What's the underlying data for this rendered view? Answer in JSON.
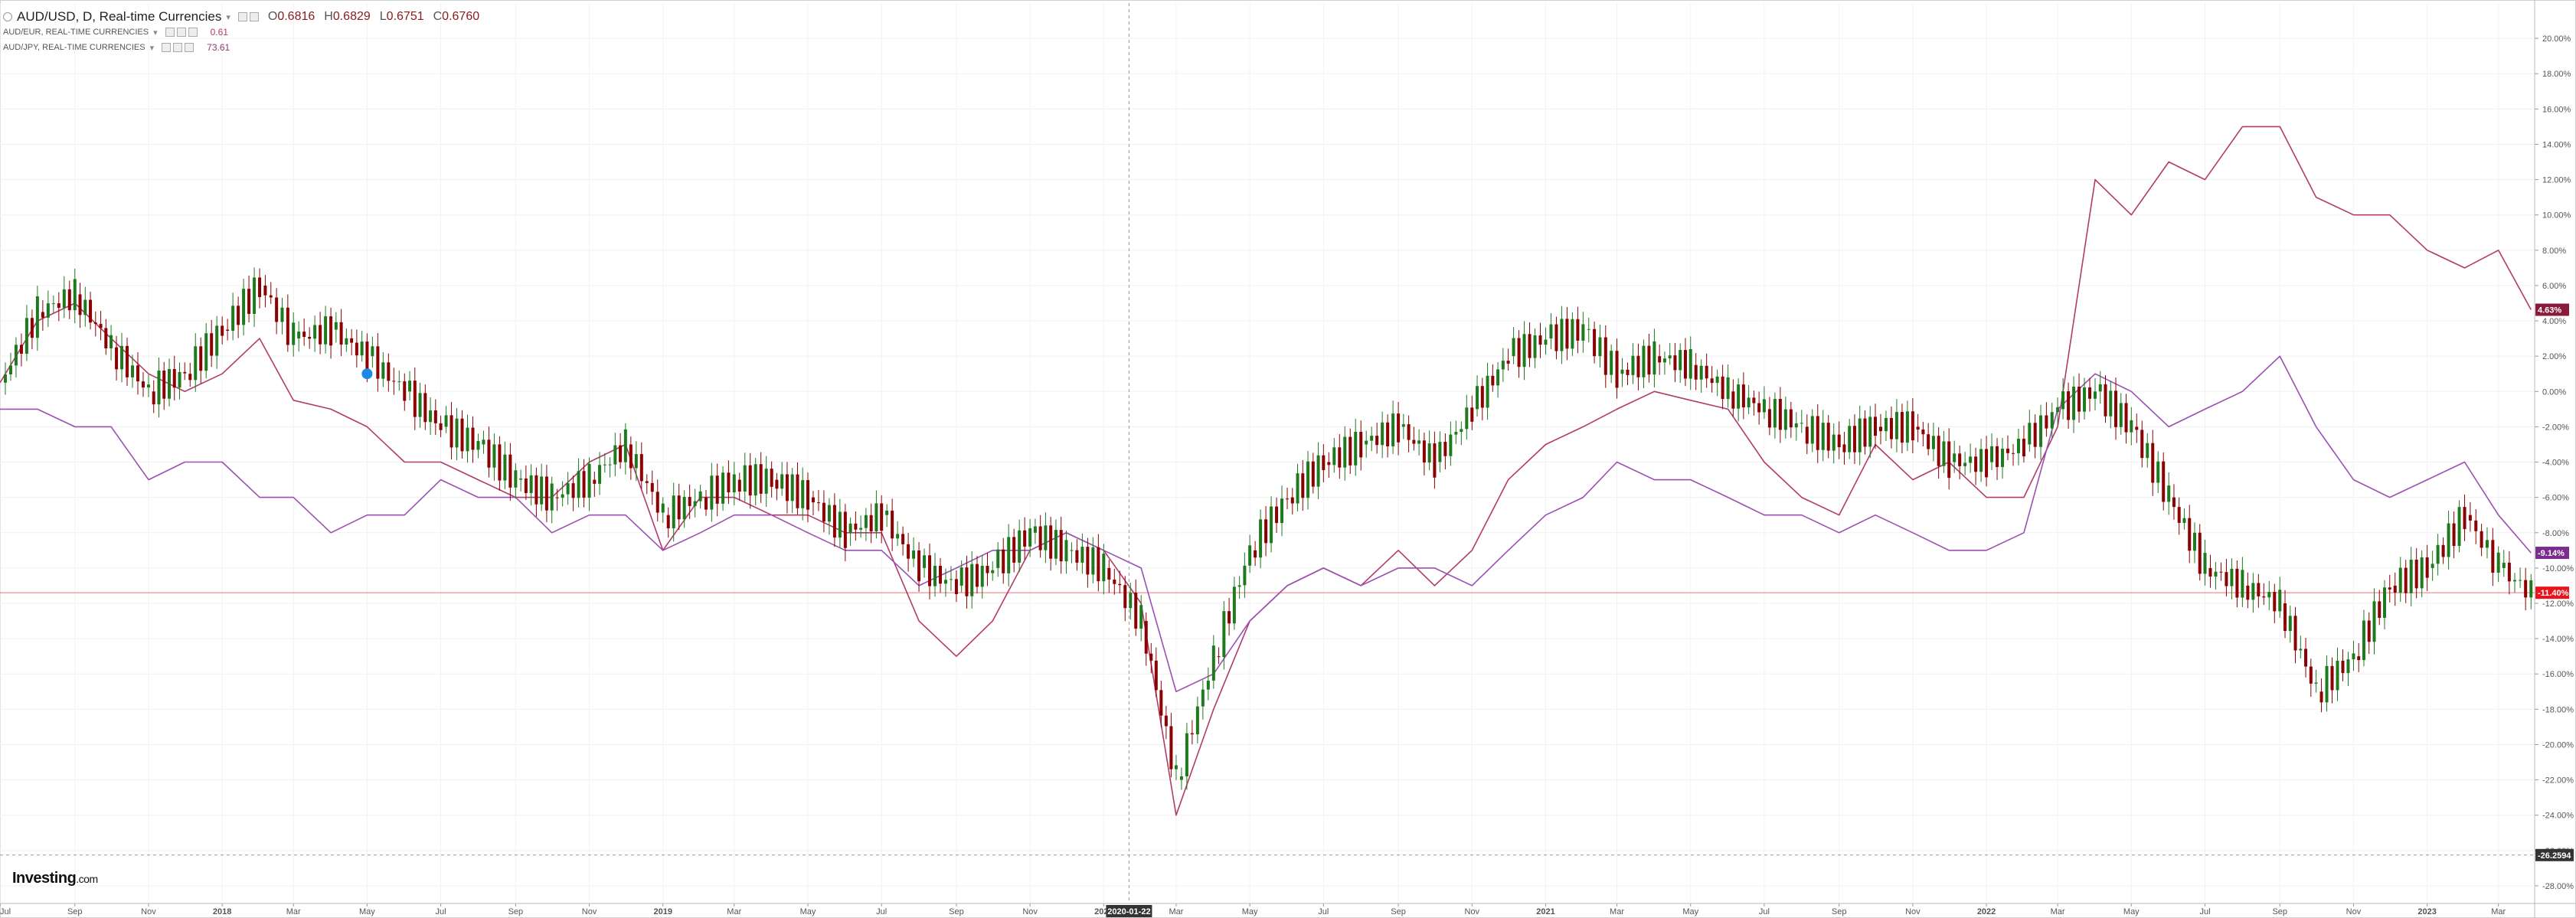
{
  "header": {
    "symbol_title": "AUD/USD, D, Real-time Currencies",
    "ohlc": [
      {
        "label": "O",
        "value": "0.6816"
      },
      {
        "label": "H",
        "value": "0.6829"
      },
      {
        "label": "L",
        "value": "0.6751"
      },
      {
        "label": "C",
        "value": "0.6760"
      }
    ],
    "compare": [
      {
        "name": "AUD/EUR, REAL-TIME CURRENCIES",
        "value": "0.61",
        "color": "#b23a6b"
      },
      {
        "name": "AUD/JPY, REAL-TIME CURRENCIES",
        "value": "73.61",
        "color": "#8b3b6e"
      }
    ]
  },
  "logo": {
    "brand": "Investing",
    "suffix": ".com"
  },
  "crosshair": {
    "date_label": "2020-01-22",
    "value_label": "-26.2594"
  },
  "chart_data": {
    "type": "line",
    "x_axis": {
      "type": "date",
      "tick_labels": [
        "Jul",
        "Sep",
        "Nov",
        "2018",
        "Mar",
        "May",
        "Jul",
        "Sep",
        "Nov",
        "2019",
        "Mar",
        "May",
        "Jul",
        "Sep",
        "Nov",
        "2020",
        "Mar",
        "May",
        "Jul",
        "Sep",
        "Nov",
        "2021",
        "Mar",
        "May",
        "Jul",
        "Sep",
        "Nov",
        "2022",
        "Mar",
        "May",
        "Jul",
        "Sep",
        "Nov",
        "2023",
        "Mar"
      ],
      "tick_dates": [
        "2017-07-01",
        "2017-09-01",
        "2017-11-01",
        "2018-01-01",
        "2018-03-01",
        "2018-05-01",
        "2018-07-01",
        "2018-09-01",
        "2018-11-01",
        "2019-01-01",
        "2019-03-01",
        "2019-05-01",
        "2019-07-01",
        "2019-09-01",
        "2019-11-01",
        "2020-01-01",
        "2020-03-01",
        "2020-05-01",
        "2020-07-01",
        "2020-09-01",
        "2020-11-01",
        "2021-01-01",
        "2021-03-01",
        "2021-05-01",
        "2021-07-01",
        "2021-09-01",
        "2021-11-01",
        "2022-01-01",
        "2022-03-01",
        "2022-05-01",
        "2022-07-01",
        "2022-09-01",
        "2022-11-01",
        "2023-01-01",
        "2023-03-01"
      ],
      "range": [
        "2017-07-01",
        "2023-03-31"
      ]
    },
    "y_axis": {
      "unit": "%",
      "range": [
        -29,
        22
      ],
      "tick_labels": [
        "20.00%",
        "18.00%",
        "16.00%",
        "14.00%",
        "12.00%",
        "10.00%",
        "8.00%",
        "6.00%",
        "4.00%",
        "2.00%",
        "0.00%",
        "-2.00%",
        "-4.00%",
        "-6.00%",
        "-8.00%",
        "-10.00%",
        "-12.00%",
        "-14.00%",
        "-16.00%",
        "-18.00%",
        "-20.00%",
        "-22.00%",
        "-24.00%",
        "-26.00%",
        "-28.00%"
      ],
      "tick_values": [
        20,
        18,
        16,
        14,
        12,
        10,
        8,
        6,
        4,
        2,
        0,
        -2,
        -4,
        -6,
        -8,
        -10,
        -12,
        -14,
        -16,
        -18,
        -20,
        -22,
        -24,
        -26,
        -28
      ],
      "side": "right"
    },
    "grid": true,
    "current_level_line": -11.4,
    "series": [
      {
        "name": "AUD/USD",
        "style": "candlestick",
        "up_color": "#1f7a1f",
        "down_color": "#8b0000",
        "badge": "-11.40%",
        "badge_color": "#e8141c",
        "x": [
          "2017-07-01",
          "2017-08-01",
          "2017-09-01",
          "2017-10-01",
          "2017-11-01",
          "2017-12-01",
          "2018-01-01",
          "2018-02-01",
          "2018-03-01",
          "2018-04-01",
          "2018-05-01",
          "2018-06-01",
          "2018-07-01",
          "2018-08-01",
          "2018-09-01",
          "2018-10-01",
          "2018-11-01",
          "2018-12-01",
          "2019-01-01",
          "2019-02-01",
          "2019-03-01",
          "2019-04-01",
          "2019-05-01",
          "2019-06-01",
          "2019-07-01",
          "2019-08-01",
          "2019-09-01",
          "2019-10-01",
          "2019-11-01",
          "2019-12-01",
          "2020-01-01",
          "2020-02-01",
          "2020-03-01",
          "2020-04-01",
          "2020-05-01",
          "2020-06-01",
          "2020-07-01",
          "2020-08-01",
          "2020-09-01",
          "2020-10-01",
          "2020-11-01",
          "2020-12-01",
          "2021-01-01",
          "2021-02-01",
          "2021-03-01",
          "2021-04-01",
          "2021-05-01",
          "2021-06-01",
          "2021-07-01",
          "2021-08-01",
          "2021-09-01",
          "2021-10-01",
          "2021-11-01",
          "2021-12-01",
          "2022-01-01",
          "2022-02-01",
          "2022-03-01",
          "2022-04-01",
          "2022-05-01",
          "2022-06-01",
          "2022-07-01",
          "2022-08-01",
          "2022-09-01",
          "2022-10-01",
          "2022-11-01",
          "2022-12-01",
          "2023-01-01",
          "2023-02-01",
          "2023-03-01",
          "2023-03-28"
        ],
        "values": [
          0.5,
          4.5,
          5.5,
          2.5,
          0,
          1,
          3.5,
          6,
          3,
          3.5,
          2,
          0,
          -2,
          -3,
          -5,
          -6,
          -5,
          -3,
          -7,
          -6,
          -5,
          -5,
          -6,
          -8,
          -7,
          -10,
          -11,
          -10,
          -8,
          -9,
          -10,
          -13,
          -22,
          -15,
          -9,
          -6,
          -4,
          -3,
          -2,
          -4,
          -1,
          2,
          3,
          3.5,
          1,
          2,
          1.5,
          0,
          -1,
          -2,
          -3,
          -2,
          -2,
          -4,
          -4,
          -3,
          -1,
          0,
          -2,
          -6,
          -10,
          -11,
          -12,
          -17,
          -15,
          -11,
          -10,
          -7,
          -10,
          -11.4
        ]
      },
      {
        "name": "AUD/EUR",
        "style": "line",
        "color": "#b23a6b",
        "badge": "4.63%",
        "badge_color": "#8b1a3a",
        "x": [
          "2017-07-01",
          "2017-08-01",
          "2017-09-01",
          "2017-10-01",
          "2017-11-01",
          "2017-12-01",
          "2018-01-01",
          "2018-02-01",
          "2018-03-01",
          "2018-04-01",
          "2018-05-01",
          "2018-06-01",
          "2018-07-01",
          "2018-08-01",
          "2018-09-01",
          "2018-10-01",
          "2018-11-01",
          "2018-12-01",
          "2019-01-01",
          "2019-02-01",
          "2019-03-01",
          "2019-04-01",
          "2019-05-01",
          "2019-06-01",
          "2019-07-01",
          "2019-08-01",
          "2019-09-01",
          "2019-10-01",
          "2019-11-01",
          "2019-12-01",
          "2020-01-01",
          "2020-02-01",
          "2020-03-01",
          "2020-04-01",
          "2020-05-01",
          "2020-06-01",
          "2020-07-01",
          "2020-08-01",
          "2020-09-01",
          "2020-10-01",
          "2020-11-01",
          "2020-12-01",
          "2021-01-01",
          "2021-02-01",
          "2021-03-01",
          "2021-04-01",
          "2021-05-01",
          "2021-06-01",
          "2021-07-01",
          "2021-08-01",
          "2021-09-01",
          "2021-10-01",
          "2021-11-01",
          "2021-12-01",
          "2022-01-01",
          "2022-02-01",
          "2022-03-01",
          "2022-04-01",
          "2022-05-01",
          "2022-06-01",
          "2022-07-01",
          "2022-08-01",
          "2022-09-01",
          "2022-10-01",
          "2022-11-01",
          "2022-12-01",
          "2023-01-01",
          "2023-02-01",
          "2023-03-01",
          "2023-03-28"
        ],
        "values": [
          0.5,
          4,
          5,
          3,
          1,
          0,
          1,
          3,
          -0.5,
          -1,
          -2,
          -4,
          -4,
          -5,
          -6,
          -6,
          -4,
          -3,
          -9,
          -6,
          -6,
          -7,
          -7,
          -8,
          -8,
          -13,
          -15,
          -13,
          -9,
          -8,
          -9,
          -12,
          -24,
          -18,
          -13,
          -11,
          -10,
          -11,
          -9,
          -11,
          -9,
          -5,
          -3,
          -2,
          -1,
          0,
          -0.5,
          -1,
          -4,
          -6,
          -7,
          -3,
          -5,
          -4,
          -6,
          -6,
          -2,
          12,
          10,
          13,
          12,
          15,
          15,
          11,
          10,
          10,
          8,
          7,
          8,
          4.63
        ]
      },
      {
        "name": "AUD/JPY",
        "style": "line",
        "color": "#9b4fb3",
        "badge": "-9.14%",
        "badge_color": "#7b2d8e",
        "x": [
          "2017-07-01",
          "2017-08-01",
          "2017-09-01",
          "2017-10-01",
          "2017-11-01",
          "2017-12-01",
          "2018-01-01",
          "2018-02-01",
          "2018-03-01",
          "2018-04-01",
          "2018-05-01",
          "2018-06-01",
          "2018-07-01",
          "2018-08-01",
          "2018-09-01",
          "2018-10-01",
          "2018-11-01",
          "2018-12-01",
          "2019-01-01",
          "2019-02-01",
          "2019-03-01",
          "2019-04-01",
          "2019-05-01",
          "2019-06-01",
          "2019-07-01",
          "2019-08-01",
          "2019-09-01",
          "2019-10-01",
          "2019-11-01",
          "2019-12-01",
          "2020-01-01",
          "2020-02-01",
          "2020-03-01",
          "2020-04-01",
          "2020-05-01",
          "2020-06-01",
          "2020-07-01",
          "2020-08-01",
          "2020-09-01",
          "2020-10-01",
          "2020-11-01",
          "2020-12-01",
          "2021-01-01",
          "2021-02-01",
          "2021-03-01",
          "2021-04-01",
          "2021-05-01",
          "2021-06-01",
          "2021-07-01",
          "2021-08-01",
          "2021-09-01",
          "2021-10-01",
          "2021-11-01",
          "2021-12-01",
          "2022-01-01",
          "2022-02-01",
          "2022-03-01",
          "2022-04-01",
          "2022-05-01",
          "2022-06-01",
          "2022-07-01",
          "2022-08-01",
          "2022-09-01",
          "2022-10-01",
          "2022-11-01",
          "2022-12-01",
          "2023-01-01",
          "2023-02-01",
          "2023-03-01",
          "2023-03-28"
        ],
        "values": [
          -1,
          -1,
          -2,
          -2,
          -5,
          -4,
          -4,
          -6,
          -6,
          -8,
          -7,
          -7,
          -5,
          -6,
          -6,
          -8,
          -7,
          -7,
          -9,
          -8,
          -7,
          -7,
          -8,
          -9,
          -9,
          -11,
          -10,
          -9,
          -9,
          -8,
          -9,
          -10,
          -17,
          -16,
          -13,
          -11,
          -10,
          -11,
          -10,
          -10,
          -11,
          -9,
          -7,
          -6,
          -4,
          -5,
          -5,
          -6,
          -7,
          -7,
          -8,
          -7,
          -8,
          -9,
          -9,
          -8,
          -1,
          1,
          0,
          -2,
          -1,
          0,
          2,
          -2,
          -5,
          -6,
          -5,
          -4,
          -7,
          -9.14
        ]
      }
    ]
  }
}
